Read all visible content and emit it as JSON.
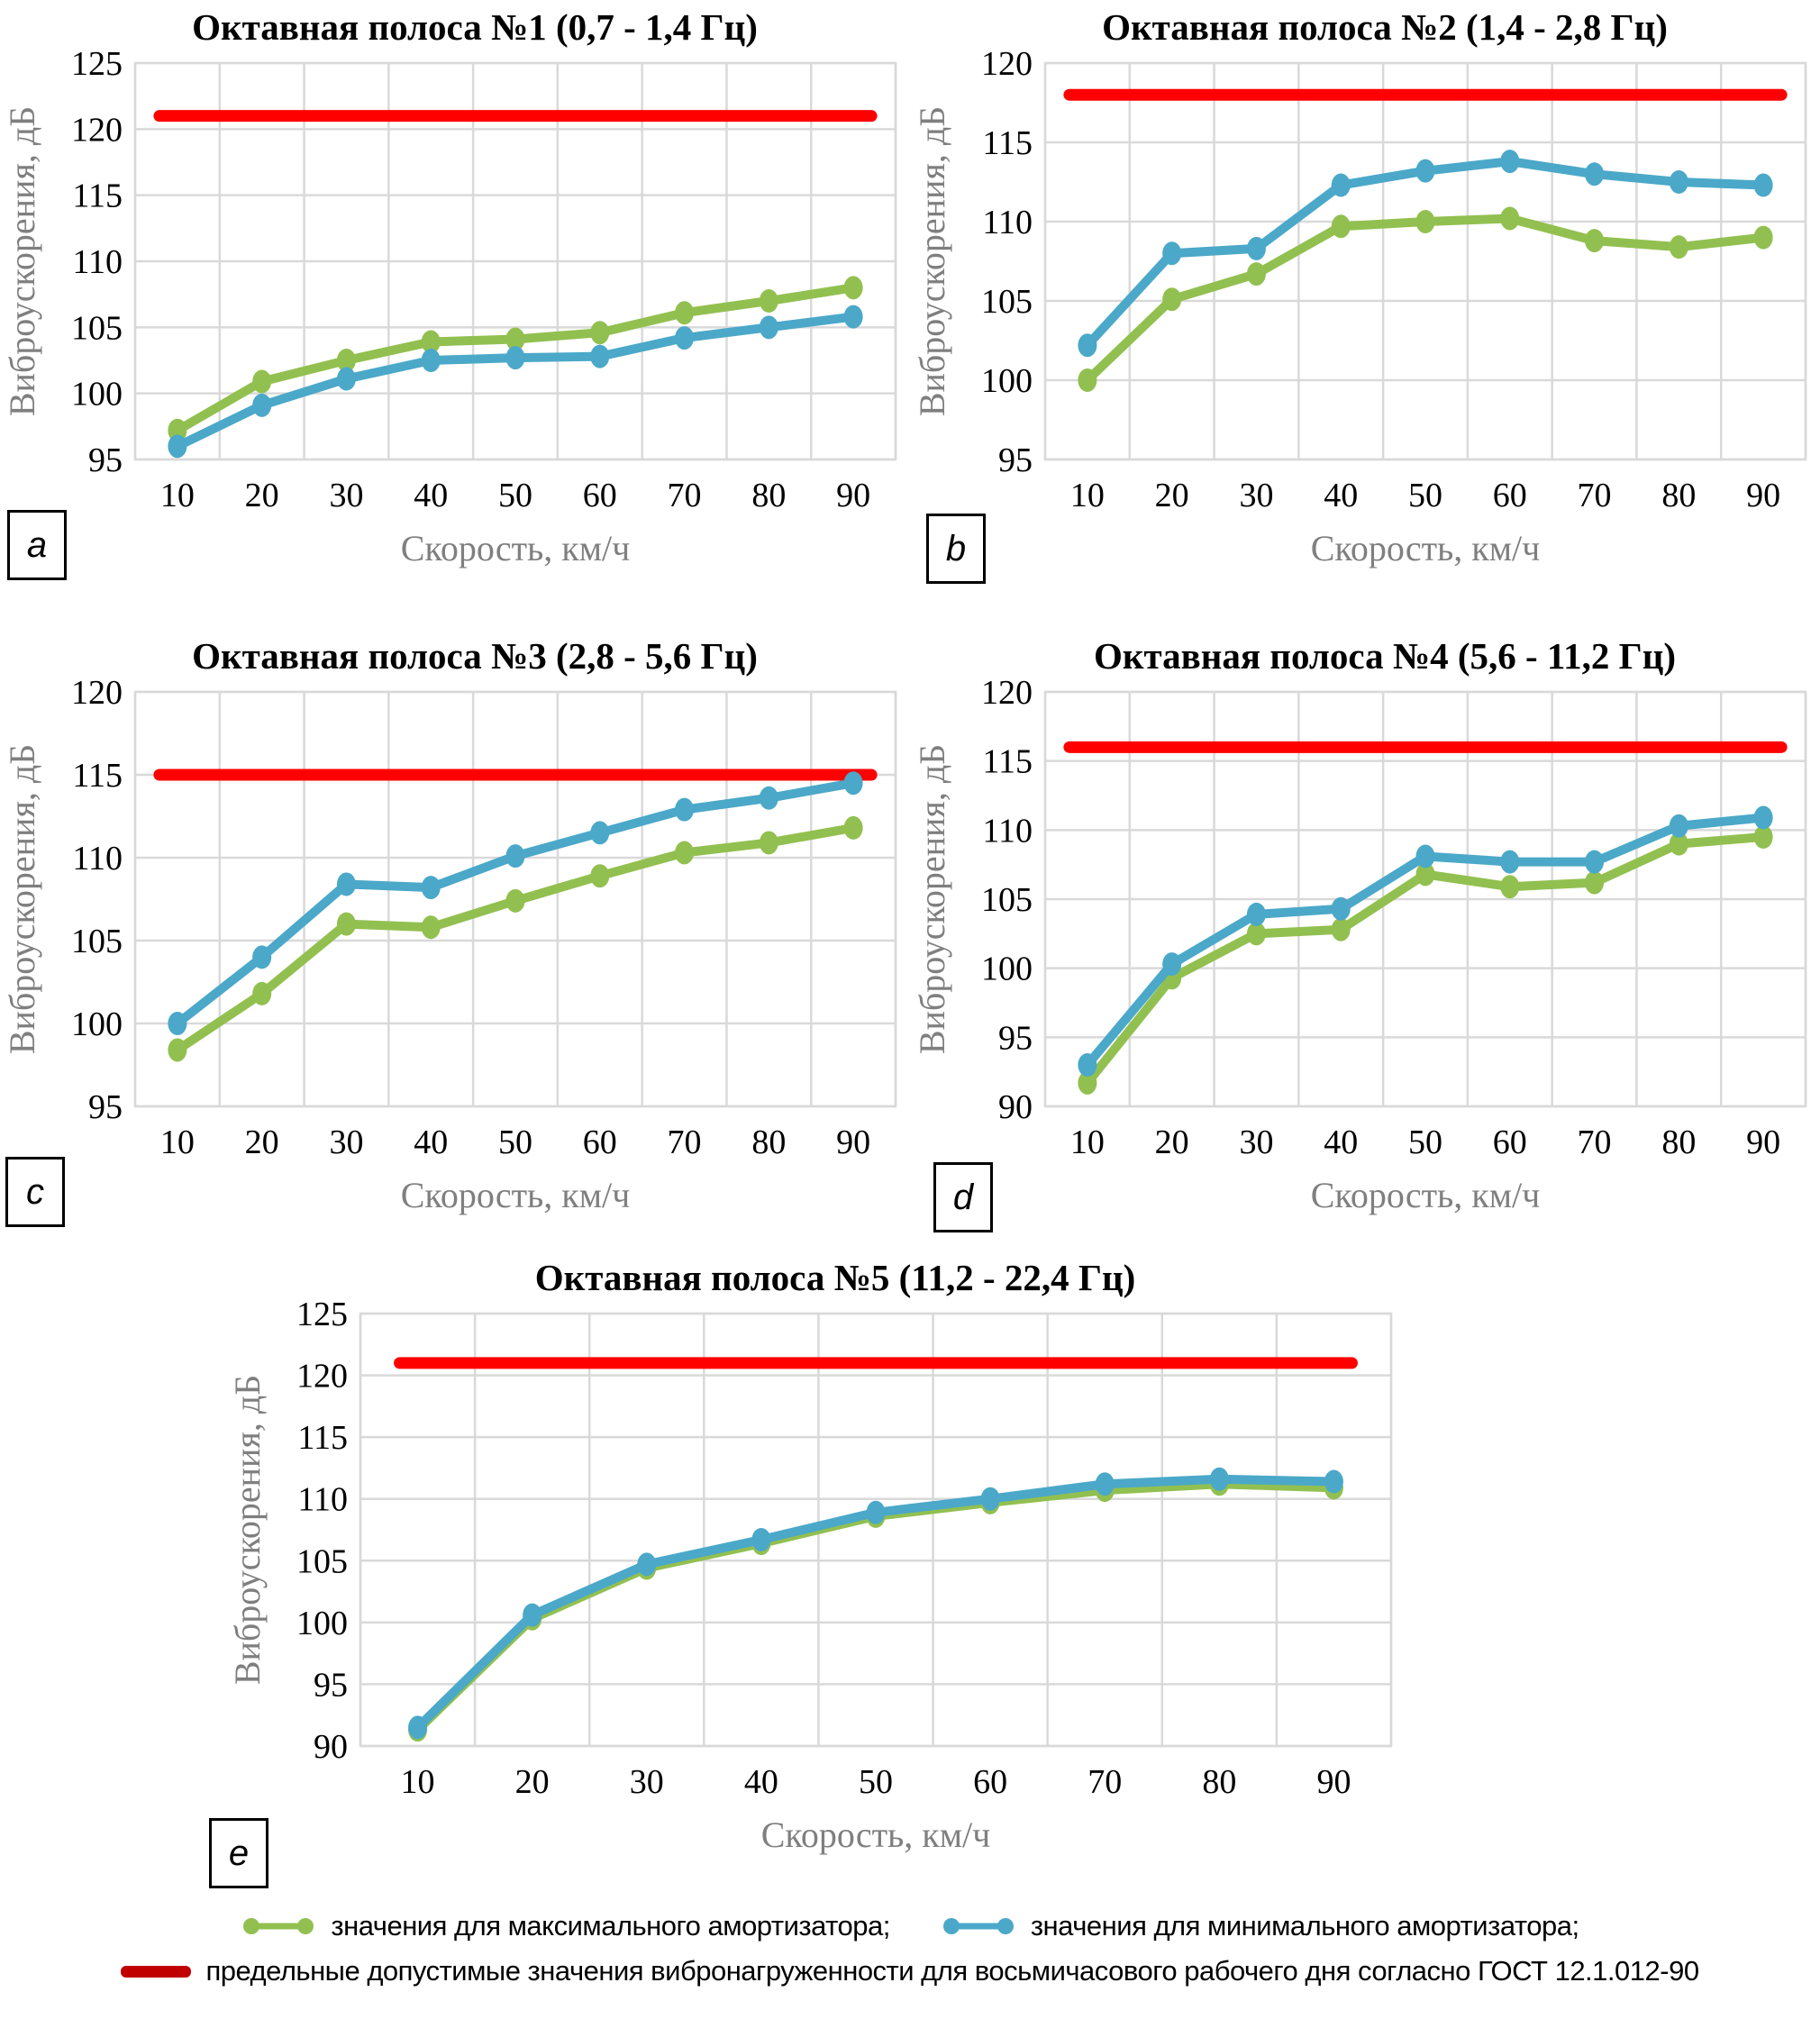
{
  "axis_common": {
    "xlabel": "Скорость, км/ч",
    "ylabel": "Виброускорения, дБ"
  },
  "colors": {
    "max_series": "#92C050",
    "min_series": "#4BA8C8",
    "limit_line": "#FF0000",
    "legend_limit_swatch": "#C00000",
    "gridline": "#D9D9D9",
    "axis_text": "#000000",
    "axis_title_gray": "#7F7F7F"
  },
  "legend": {
    "items": [
      {
        "label": "значения для максимального амортизатора;",
        "color": "#92C050",
        "swatch": "line-marker"
      },
      {
        "label": "значения для минимального амортизатора;",
        "color": "#4BA8C8",
        "swatch": "line-marker"
      },
      {
        "label": "предельные допустимые значения вибронагруженности для восьмичасового рабочего дня согласно ГОСТ 12.1.012-90",
        "color": "#C00000",
        "swatch": "line"
      }
    ]
  },
  "chart_data": [
    {
      "type": "line",
      "panel_label": "a",
      "title": "Октавная полоса №1 (0,7 - 1,4 Гц)",
      "xlabel": "Скорость, км/ч",
      "ylabel": "Виброускорения, дБ",
      "categories": [
        "10",
        "20",
        "30",
        "40",
        "50",
        "60",
        "70",
        "80",
        "90"
      ],
      "ylim": [
        95,
        125
      ],
      "ytick_step": 5,
      "grid": true,
      "limit_value": 121,
      "series": [
        {
          "name": "значения для максимального амортизатора",
          "color_key": "max_series",
          "values": [
            97.2,
            100.9,
            102.5,
            103.9,
            104.1,
            104.6,
            106.1,
            107.0,
            108.0
          ]
        },
        {
          "name": "значения для минимального амортизатора",
          "color_key": "min_series",
          "values": [
            96.0,
            99.1,
            101.1,
            102.5,
            102.7,
            102.8,
            104.2,
            105.0,
            105.8
          ]
        }
      ]
    },
    {
      "type": "line",
      "panel_label": "b",
      "title": "Октавная полоса №2 (1,4 - 2,8 Гц)",
      "xlabel": "Скорость, км/ч",
      "ylabel": "Виброускорения, дБ",
      "categories": [
        "10",
        "20",
        "30",
        "40",
        "50",
        "60",
        "70",
        "80",
        "90"
      ],
      "ylim": [
        95,
        120
      ],
      "ytick_step": 5,
      "grid": true,
      "limit_value": 118,
      "series": [
        {
          "name": "значения для максимального амортизатора",
          "color_key": "max_series",
          "values": [
            100.0,
            105.1,
            106.7,
            109.7,
            110.0,
            110.2,
            108.8,
            108.4,
            109.0
          ]
        },
        {
          "name": "значения для минимального амортизатора",
          "color_key": "min_series",
          "values": [
            102.2,
            108.0,
            108.3,
            112.3,
            113.2,
            113.8,
            113.0,
            112.5,
            112.3
          ]
        }
      ]
    },
    {
      "type": "line",
      "panel_label": "c",
      "title": "Октавная полоса №3 (2,8 - 5,6 Гц)",
      "xlabel": "Скорость, км/ч",
      "ylabel": "Виброускорения, дБ",
      "categories": [
        "10",
        "20",
        "30",
        "40",
        "50",
        "60",
        "70",
        "80",
        "90"
      ],
      "ylim": [
        95,
        120
      ],
      "ytick_step": 5,
      "grid": true,
      "limit_value": 115,
      "series": [
        {
          "name": "значения для максимального амортизатора",
          "color_key": "max_series",
          "values": [
            98.4,
            101.8,
            106.0,
            105.8,
            107.4,
            108.9,
            110.3,
            110.9,
            111.8
          ]
        },
        {
          "name": "значения для минимального амортизатора",
          "color_key": "min_series",
          "values": [
            100.0,
            104.0,
            108.4,
            108.2,
            110.1,
            111.5,
            112.9,
            113.6,
            114.5
          ]
        }
      ]
    },
    {
      "type": "line",
      "panel_label": "d",
      "title": "Октавная полоса №4 (5,6 - 11,2 Гц)",
      "xlabel": "Скорость, км/ч",
      "ylabel": "Виброускорения, дБ",
      "categories": [
        "10",
        "20",
        "30",
        "40",
        "50",
        "60",
        "70",
        "80",
        "90"
      ],
      "ylim": [
        90,
        120
      ],
      "ytick_step": 5,
      "grid": true,
      "limit_value": 116,
      "series": [
        {
          "name": "значения для максимального амортизатора",
          "color_key": "max_series",
          "values": [
            91.7,
            99.3,
            102.5,
            102.8,
            106.8,
            105.9,
            106.2,
            109.0,
            109.5
          ]
        },
        {
          "name": "значения для минимального амортизатора",
          "color_key": "min_series",
          "values": [
            93.0,
            100.3,
            103.9,
            104.3,
            108.1,
            107.7,
            107.7,
            110.3,
            110.9
          ]
        }
      ]
    },
    {
      "type": "line",
      "panel_label": "e",
      "title": "Октавная полоса №5 (11,2 - 22,4 Гц)",
      "xlabel": "Скорость, км/ч",
      "ylabel": "Виброускорения, дБ",
      "categories": [
        "10",
        "20",
        "30",
        "40",
        "50",
        "60",
        "70",
        "80",
        "90"
      ],
      "ylim": [
        90,
        125
      ],
      "ytick_step": 5,
      "grid": true,
      "limit_value": 121,
      "series": [
        {
          "name": "значения для максимального амортизатора",
          "color_key": "max_series",
          "values": [
            91.3,
            100.3,
            104.4,
            106.4,
            108.6,
            109.7,
            110.7,
            111.2,
            110.9
          ]
        },
        {
          "name": "значения для минимального амортизатора",
          "color_key": "min_series",
          "values": [
            91.5,
            100.6,
            104.7,
            106.7,
            108.9,
            110.0,
            111.2,
            111.6,
            111.4
          ]
        }
      ]
    }
  ]
}
